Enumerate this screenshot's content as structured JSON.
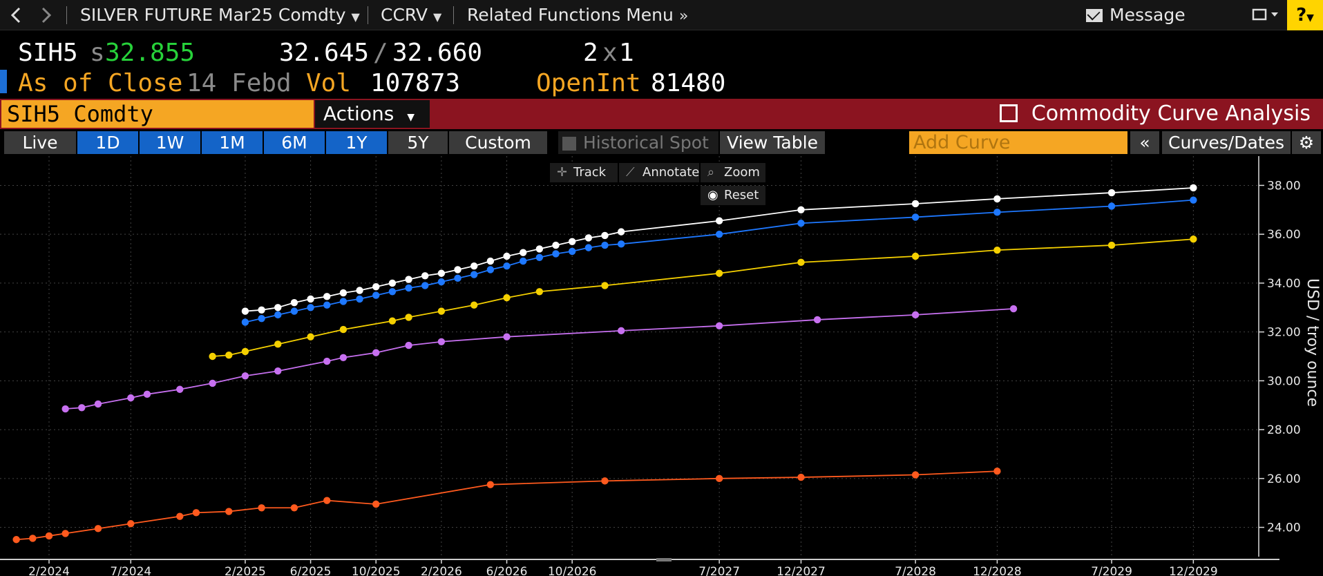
{
  "nav": {
    "security_menu": "SILVER FUTURE Mar25 Comdty",
    "function_menu": "CCRV",
    "related_menu": "Related Functions Menu",
    "message": "Message",
    "help": "?"
  },
  "quote": {
    "ticker": "SIH5",
    "last_prefix": "s",
    "last": "32.855",
    "bid": "32.645",
    "slash": "/",
    "ask": "32.660",
    "bid_size": "2",
    "size_sep": "x",
    "ask_size": "1",
    "close_label": "As of Close",
    "close_date": "14 Febd",
    "vol_label": "Vol",
    "vol": "107873",
    "oi_label": "OpenInt",
    "oi": "81480"
  },
  "titlebar": {
    "security": "SIH5 Comdty",
    "actions": "Actions",
    "function_title": "Commodity Curve Analysis"
  },
  "horizon": {
    "buttons": [
      "Live",
      "1D",
      "1W",
      "1M",
      "6M",
      "1Y",
      "5Y",
      "Custom"
    ],
    "historical_spot": "Historical Spot",
    "view_table": "View Table",
    "add_curve_placeholder": "Add Curve",
    "collapse": "«",
    "curves_dates": "Curves/Dates",
    "settings_icon": "gear-icon"
  },
  "chart_tools": {
    "track": "Track",
    "annotate": "Annotate",
    "zoom": "Zoom",
    "reset": "Reset"
  },
  "chart_data": {
    "type": "line",
    "ylabel": "USD / troy ounce",
    "ylim": [
      22.8,
      39.2
    ],
    "y_ticks": [
      "38.00",
      "36.00",
      "34.00",
      "32.00",
      "30.00",
      "28.00",
      "26.00",
      "24.00"
    ],
    "x_ticks": [
      "2/2024",
      "7/2024",
      "2/2025",
      "6/2025",
      "10/2025",
      "2/2026",
      "6/2026",
      "10/2026",
      "7/2027",
      "12/2027",
      "7/2028",
      "12/2028",
      "7/2029",
      "12/2029"
    ],
    "x_range": [
      "2023-11",
      "2030-04"
    ],
    "grid": true,
    "series": [
      {
        "color": "#ffffff",
        "points": [
          [
            "2025-02",
            32.85
          ],
          [
            "2025-03",
            32.9
          ],
          [
            "2025-04",
            33.0
          ],
          [
            "2025-05",
            33.2
          ],
          [
            "2025-06",
            33.35
          ],
          [
            "2025-07",
            33.45
          ],
          [
            "2025-08",
            33.6
          ],
          [
            "2025-09",
            33.7
          ],
          [
            "2025-10",
            33.85
          ],
          [
            "2025-11",
            34.0
          ],
          [
            "2025-12",
            34.15
          ],
          [
            "2026-01",
            34.3
          ],
          [
            "2026-02",
            34.4
          ],
          [
            "2026-03",
            34.55
          ],
          [
            "2026-04",
            34.7
          ],
          [
            "2026-05",
            34.9
          ],
          [
            "2026-06",
            35.1
          ],
          [
            "2026-07",
            35.25
          ],
          [
            "2026-08",
            35.4
          ],
          [
            "2026-09",
            35.55
          ],
          [
            "2026-10",
            35.7
          ],
          [
            "2026-11",
            35.85
          ],
          [
            "2026-12",
            35.95
          ],
          [
            "2027-01",
            36.1
          ],
          [
            "2027-07",
            36.55
          ],
          [
            "2027-12",
            37.0
          ],
          [
            "2028-07",
            37.25
          ],
          [
            "2028-12",
            37.45
          ],
          [
            "2029-07",
            37.7
          ],
          [
            "2029-12",
            37.9
          ]
        ]
      },
      {
        "color": "#1e78ff",
        "points": [
          [
            "2025-02",
            32.4
          ],
          [
            "2025-03",
            32.55
          ],
          [
            "2025-04",
            32.7
          ],
          [
            "2025-05",
            32.85
          ],
          [
            "2025-06",
            33.0
          ],
          [
            "2025-07",
            33.1
          ],
          [
            "2025-08",
            33.25
          ],
          [
            "2025-09",
            33.35
          ],
          [
            "2025-10",
            33.5
          ],
          [
            "2025-11",
            33.65
          ],
          [
            "2025-12",
            33.8
          ],
          [
            "2026-01",
            33.9
          ],
          [
            "2026-02",
            34.05
          ],
          [
            "2026-03",
            34.2
          ],
          [
            "2026-04",
            34.35
          ],
          [
            "2026-05",
            34.55
          ],
          [
            "2026-06",
            34.7
          ],
          [
            "2026-07",
            34.9
          ],
          [
            "2026-08",
            35.05
          ],
          [
            "2026-09",
            35.2
          ],
          [
            "2026-10",
            35.3
          ],
          [
            "2026-11",
            35.45
          ],
          [
            "2026-12",
            35.55
          ],
          [
            "2027-01",
            35.6
          ],
          [
            "2027-07",
            36.0
          ],
          [
            "2027-12",
            36.45
          ],
          [
            "2028-07",
            36.7
          ],
          [
            "2028-12",
            36.9
          ],
          [
            "2029-07",
            37.15
          ],
          [
            "2029-12",
            37.4
          ]
        ]
      },
      {
        "color": "#f5d000",
        "points": [
          [
            "2024-12",
            31.0
          ],
          [
            "2025-01",
            31.05
          ],
          [
            "2025-02",
            31.2
          ],
          [
            "2025-04",
            31.5
          ],
          [
            "2025-06",
            31.8
          ],
          [
            "2025-08",
            32.1
          ],
          [
            "2025-11",
            32.45
          ],
          [
            "2025-12",
            32.6
          ],
          [
            "2026-02",
            32.85
          ],
          [
            "2026-04",
            33.1
          ],
          [
            "2026-06",
            33.4
          ],
          [
            "2026-08",
            33.65
          ],
          [
            "2026-12",
            33.9
          ],
          [
            "2027-07",
            34.4
          ],
          [
            "2027-12",
            34.85
          ],
          [
            "2028-07",
            35.1
          ],
          [
            "2028-12",
            35.35
          ],
          [
            "2029-07",
            35.55
          ],
          [
            "2029-12",
            35.8
          ]
        ]
      },
      {
        "color": "#c770f0",
        "points": [
          [
            "2024-03",
            28.85
          ],
          [
            "2024-04",
            28.9
          ],
          [
            "2024-05",
            29.05
          ],
          [
            "2024-07",
            29.3
          ],
          [
            "2024-08",
            29.45
          ],
          [
            "2024-10",
            29.65
          ],
          [
            "2024-12",
            29.9
          ],
          [
            "2025-02",
            30.2
          ],
          [
            "2025-04",
            30.4
          ],
          [
            "2025-07",
            30.8
          ],
          [
            "2025-08",
            30.95
          ],
          [
            "2025-10",
            31.15
          ],
          [
            "2025-12",
            31.45
          ],
          [
            "2026-02",
            31.6
          ],
          [
            "2026-06",
            31.8
          ],
          [
            "2027-01",
            32.05
          ],
          [
            "2027-07",
            32.25
          ],
          [
            "2028-01",
            32.5
          ],
          [
            "2028-07",
            32.7
          ],
          [
            "2029-01",
            32.95
          ]
        ]
      },
      {
        "color": "#ff5a1e",
        "points": [
          [
            "2023-12",
            23.5
          ],
          [
            "2024-01",
            23.55
          ],
          [
            "2024-02",
            23.65
          ],
          [
            "2024-03",
            23.75
          ],
          [
            "2024-05",
            23.95
          ],
          [
            "2024-07",
            24.15
          ],
          [
            "2024-10",
            24.45
          ],
          [
            "2024-11",
            24.6
          ],
          [
            "2025-01",
            24.65
          ],
          [
            "2025-03",
            24.8
          ],
          [
            "2025-05",
            24.8
          ],
          [
            "2025-07",
            25.1
          ],
          [
            "2025-10",
            24.95
          ],
          [
            "2026-05",
            25.75
          ],
          [
            "2026-12",
            25.9
          ],
          [
            "2027-07",
            26.0
          ],
          [
            "2027-12",
            26.05
          ],
          [
            "2028-07",
            26.15
          ],
          [
            "2028-12",
            26.3
          ]
        ]
      }
    ]
  }
}
